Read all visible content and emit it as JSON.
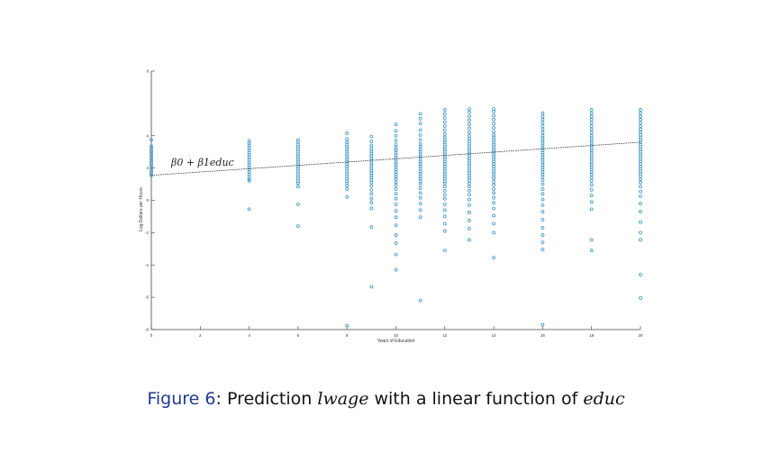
{
  "chart_data": {
    "type": "scatter",
    "xlabel": "Years of Education",
    "ylabel": "Log Dollars per Hours",
    "xlim": [
      0,
      20
    ],
    "ylim": [
      -8,
      8
    ],
    "x_ticks": [
      "0",
      "2",
      "4",
      "6",
      "8",
      "10",
      "12",
      "14",
      "16",
      "18",
      "20"
    ],
    "y_ticks": [
      "8",
      "4",
      "2",
      "0",
      "-2",
      "-4",
      "-6",
      "-8"
    ],
    "grid": false,
    "marker": "open-circle",
    "marker_color": "#3a93c6",
    "fit_line": {
      "style": "dashed",
      "color": "#333333",
      "x": [
        0,
        20
      ],
      "y": [
        1.55,
        3.6
      ]
    },
    "annotation": "β0 + β1educ",
    "series": [
      {
        "points": [
          {
            "x": 0,
            "y": [
              1.55,
              1.7,
              1.85,
              2.0,
              2.15,
              2.3,
              2.45,
              2.6,
              2.75,
              2.9,
              3.05,
              3.2,
              3.35,
              3.75
            ]
          },
          {
            "x": 4,
            "y": [
              -0.55,
              1.2,
              1.3,
              1.45,
              1.6,
              1.75,
              1.9,
              2.05,
              2.2,
              2.35,
              2.5,
              2.65,
              2.8,
              2.95,
              3.1,
              3.25,
              3.4,
              3.55,
              3.7
            ]
          },
          {
            "x": 6,
            "y": [
              -1.6,
              -0.25,
              0.85,
              1.05,
              1.2,
              1.35,
              1.5,
              1.65,
              1.8,
              1.95,
              2.1,
              2.25,
              2.4,
              2.55,
              2.7,
              2.85,
              3.0,
              3.15,
              3.3,
              3.45,
              3.6,
              3.75
            ]
          },
          {
            "x": 8,
            "y": [
              -7.75,
              0.2,
              0.7,
              0.9,
              1.05,
              1.2,
              1.35,
              1.5,
              1.65,
              1.8,
              1.95,
              2.1,
              2.25,
              2.4,
              2.55,
              2.7,
              2.85,
              3.0,
              3.15,
              3.3,
              3.45,
              3.6,
              3.8,
              4.15
            ]
          },
          {
            "x": 9,
            "y": [
              -5.35,
              -1.65,
              -0.5,
              -0.15,
              0.1,
              0.4,
              0.65,
              0.9,
              1.1,
              1.25,
              1.4,
              1.55,
              1.7,
              1.85,
              2.0,
              2.15,
              2.3,
              2.45,
              2.6,
              2.75,
              2.9,
              3.05,
              3.2,
              3.4,
              3.65,
              3.95
            ]
          },
          {
            "x": 10,
            "y": [
              -4.3,
              -3.35,
              -2.65,
              -2.15,
              -1.55,
              -1.05,
              -0.65,
              -0.25,
              0.1,
              0.4,
              0.7,
              0.95,
              1.15,
              1.3,
              1.45,
              1.6,
              1.75,
              1.9,
              2.05,
              2.2,
              2.35,
              2.5,
              2.65,
              2.8,
              2.95,
              3.1,
              3.25,
              3.45,
              3.7,
              4.0,
              4.3,
              4.7
            ]
          },
          {
            "x": 11,
            "y": [
              -6.2,
              -1.05,
              -0.6,
              -0.2,
              0.15,
              0.45,
              0.75,
              1.0,
              1.2,
              1.35,
              1.5,
              1.65,
              1.8,
              1.95,
              2.1,
              2.25,
              2.4,
              2.55,
              2.7,
              2.85,
              3.0,
              3.15,
              3.3,
              3.5,
              3.75,
              4.05,
              4.35,
              4.75,
              5.05,
              5.35
            ]
          },
          {
            "x": 12,
            "y": [
              -3.1,
              -1.9,
              -1.45,
              -1.0,
              -0.6,
              -0.25,
              0.1,
              0.35,
              0.6,
              0.85,
              1.05,
              1.2,
              1.35,
              1.5,
              1.65,
              1.8,
              1.95,
              2.1,
              2.25,
              2.4,
              2.55,
              2.7,
              2.85,
              3.0,
              3.15,
              3.3,
              3.45,
              3.6,
              3.75,
              3.9,
              4.1,
              4.35,
              4.6,
              4.85,
              5.1,
              5.35,
              5.6
            ]
          },
          {
            "x": 13,
            "y": [
              -2.45,
              -1.75,
              -1.25,
              -0.75,
              -0.3,
              0.05,
              0.35,
              0.6,
              0.85,
              1.05,
              1.25,
              1.4,
              1.55,
              1.7,
              1.85,
              2.0,
              2.15,
              2.3,
              2.45,
              2.6,
              2.75,
              2.9,
              3.05,
              3.2,
              3.35,
              3.5,
              3.65,
              3.8,
              4.0,
              4.2,
              4.45,
              4.7,
              4.95,
              5.2,
              5.45,
              5.65
            ]
          },
          {
            "x": 14,
            "y": [
              -3.55,
              -2.0,
              -1.45,
              -0.95,
              -0.5,
              -0.15,
              0.15,
              0.45,
              0.7,
              0.95,
              1.15,
              1.35,
              1.5,
              1.65,
              1.8,
              1.95,
              2.1,
              2.25,
              2.4,
              2.55,
              2.7,
              2.85,
              3.0,
              3.15,
              3.3,
              3.45,
              3.6,
              3.75,
              3.9,
              4.05,
              4.25,
              4.5,
              4.75,
              5.0,
              5.25,
              5.5,
              5.65
            ]
          },
          {
            "x": 16,
            "y": [
              -7.7,
              -3.05,
              -2.6,
              -2.15,
              -1.7,
              -1.2,
              -0.7,
              -0.3,
              0.05,
              0.4,
              0.7,
              1.0,
              1.25,
              1.45,
              1.6,
              1.75,
              1.9,
              2.05,
              2.2,
              2.35,
              2.5,
              2.65,
              2.8,
              2.95,
              3.1,
              3.25,
              3.4,
              3.55,
              3.7,
              3.85,
              4.0,
              4.2,
              4.4,
              4.6,
              4.8,
              5.0,
              5.2,
              5.4
            ]
          },
          {
            "x": 18,
            "y": [
              -3.1,
              -2.45,
              -0.55,
              -0.1,
              0.3,
              0.65,
              0.95,
              1.2,
              1.4,
              1.6,
              1.75,
              1.9,
              2.05,
              2.2,
              2.35,
              2.5,
              2.65,
              2.8,
              2.95,
              3.1,
              3.25,
              3.4,
              3.55,
              3.7,
              3.85,
              4.0,
              4.2,
              4.4,
              4.6,
              4.8,
              5.0,
              5.2,
              5.4,
              5.6
            ]
          },
          {
            "x": 20,
            "y": [
              -6.05,
              -4.6,
              -2.45,
              -2.0,
              -1.35,
              -0.7,
              -0.2,
              0.25,
              0.55,
              0.85,
              1.1,
              1.3,
              1.5,
              1.65,
              1.8,
              1.95,
              2.1,
              2.25,
              2.4,
              2.55,
              2.7,
              2.85,
              3.0,
              3.15,
              3.3,
              3.45,
              3.6,
              3.75,
              3.9,
              4.05,
              4.2,
              4.4,
              4.6,
              4.8,
              5.0,
              5.2,
              5.4,
              5.6
            ]
          }
        ]
      }
    ]
  },
  "caption": {
    "label": "Figure 6",
    "text_before": ": Prediction ",
    "var1": "lwage",
    "text_middle": " with a linear function of ",
    "var2": "educ"
  }
}
